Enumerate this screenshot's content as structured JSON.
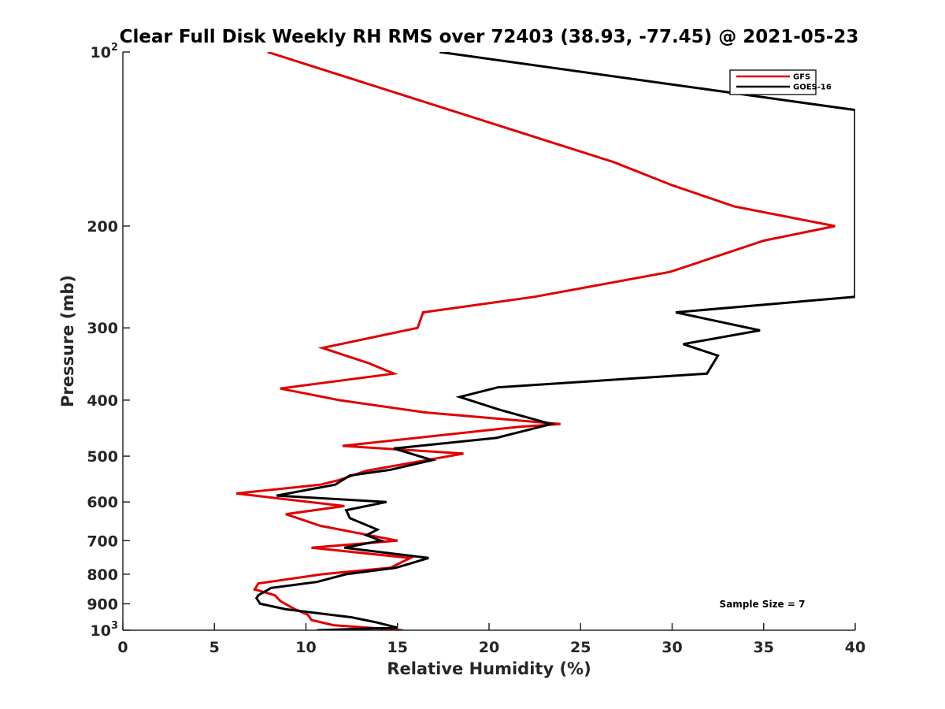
{
  "chart_data": {
    "type": "line",
    "title": "Clear Full Disk Weekly RH RMS over 72403 (38.93, -77.45) @ 2021-05-23",
    "xlabel": "Relative Humidity (%)",
    "ylabel": "Pressure (mb)",
    "xlim": [
      0,
      40
    ],
    "ylim": [
      100,
      1000
    ],
    "yscale": "log",
    "y_reversed": true,
    "grid": false,
    "legend_position": "top-right",
    "x_ticks": [
      0,
      5,
      10,
      15,
      20,
      25,
      30,
      35,
      40
    ],
    "x_tick_labels": [
      "0",
      "5",
      "10",
      "15",
      "20",
      "25",
      "30",
      "35",
      "40"
    ],
    "y_ticks": [
      100,
      200,
      300,
      400,
      500,
      600,
      700,
      800,
      900,
      1000
    ],
    "y_tick_labels": [
      {
        "base": "10",
        "exp": "2"
      },
      {
        "base": "200",
        "exp": ""
      },
      {
        "base": "300",
        "exp": ""
      },
      {
        "base": "400",
        "exp": ""
      },
      {
        "base": "500",
        "exp": ""
      },
      {
        "base": "600",
        "exp": ""
      },
      {
        "base": "700",
        "exp": ""
      },
      {
        "base": "800",
        "exp": ""
      },
      {
        "base": "900",
        "exp": ""
      },
      {
        "base": "10",
        "exp": "3"
      }
    ],
    "annotation": "Sample Size = 7",
    "series": [
      {
        "name": "GFS",
        "color": "#e00000",
        "x": [
          7.9,
          26.8,
          30.0,
          33.4,
          38.9,
          35.0,
          29.9,
          22.5,
          16.4,
          16.1,
          10.9,
          13.4,
          14.8,
          8.6,
          11.8,
          16.5,
          23.9,
          21.6,
          12.0,
          18.6,
          13.3,
          11.8,
          10.8,
          6.2,
          12.1,
          8.9,
          10.8,
          15.0,
          10.3,
          15.7,
          14.6,
          10.9,
          7.4,
          7.2,
          8.3,
          8.6,
          9.4,
          10.1,
          10.3,
          11.5,
          15.3
        ],
        "y": [
          100,
          155,
          170,
          185,
          200,
          212,
          240,
          265,
          282,
          300,
          325,
          345,
          360,
          382,
          400,
          420,
          440,
          445,
          480,
          495,
          530,
          550,
          560,
          580,
          610,
          630,
          660,
          700,
          720,
          750,
          780,
          800,
          830,
          850,
          870,
          890,
          920,
          940,
          960,
          980,
          1000
        ]
      },
      {
        "name": "GOES-16",
        "color": "#000000",
        "x": [
          17.3,
          40.0,
          40.0,
          30.2,
          34.8,
          30.6,
          32.5,
          31.9,
          20.5,
          18.4,
          20.5,
          23.4,
          20.4,
          14.8,
          16.9,
          14.6,
          12.4,
          11.6,
          8.4,
          14.4,
          12.2,
          12.4,
          13.9,
          13.3,
          14.1,
          12.1,
          16.7,
          14.9,
          12.2,
          10.6,
          8.1,
          7.4,
          7.3,
          7.5,
          8.9,
          12.5,
          13.9,
          15.0,
          10.6
        ],
        "y": [
          100,
          126,
          265,
          282,
          303,
          320,
          335,
          360,
          380,
          395,
          415,
          440,
          465,
          485,
          508,
          528,
          540,
          560,
          585,
          600,
          620,
          640,
          670,
          685,
          700,
          720,
          750,
          780,
          800,
          825,
          845,
          870,
          880,
          900,
          920,
          950,
          970,
          990,
          1000
        ]
      }
    ]
  }
}
